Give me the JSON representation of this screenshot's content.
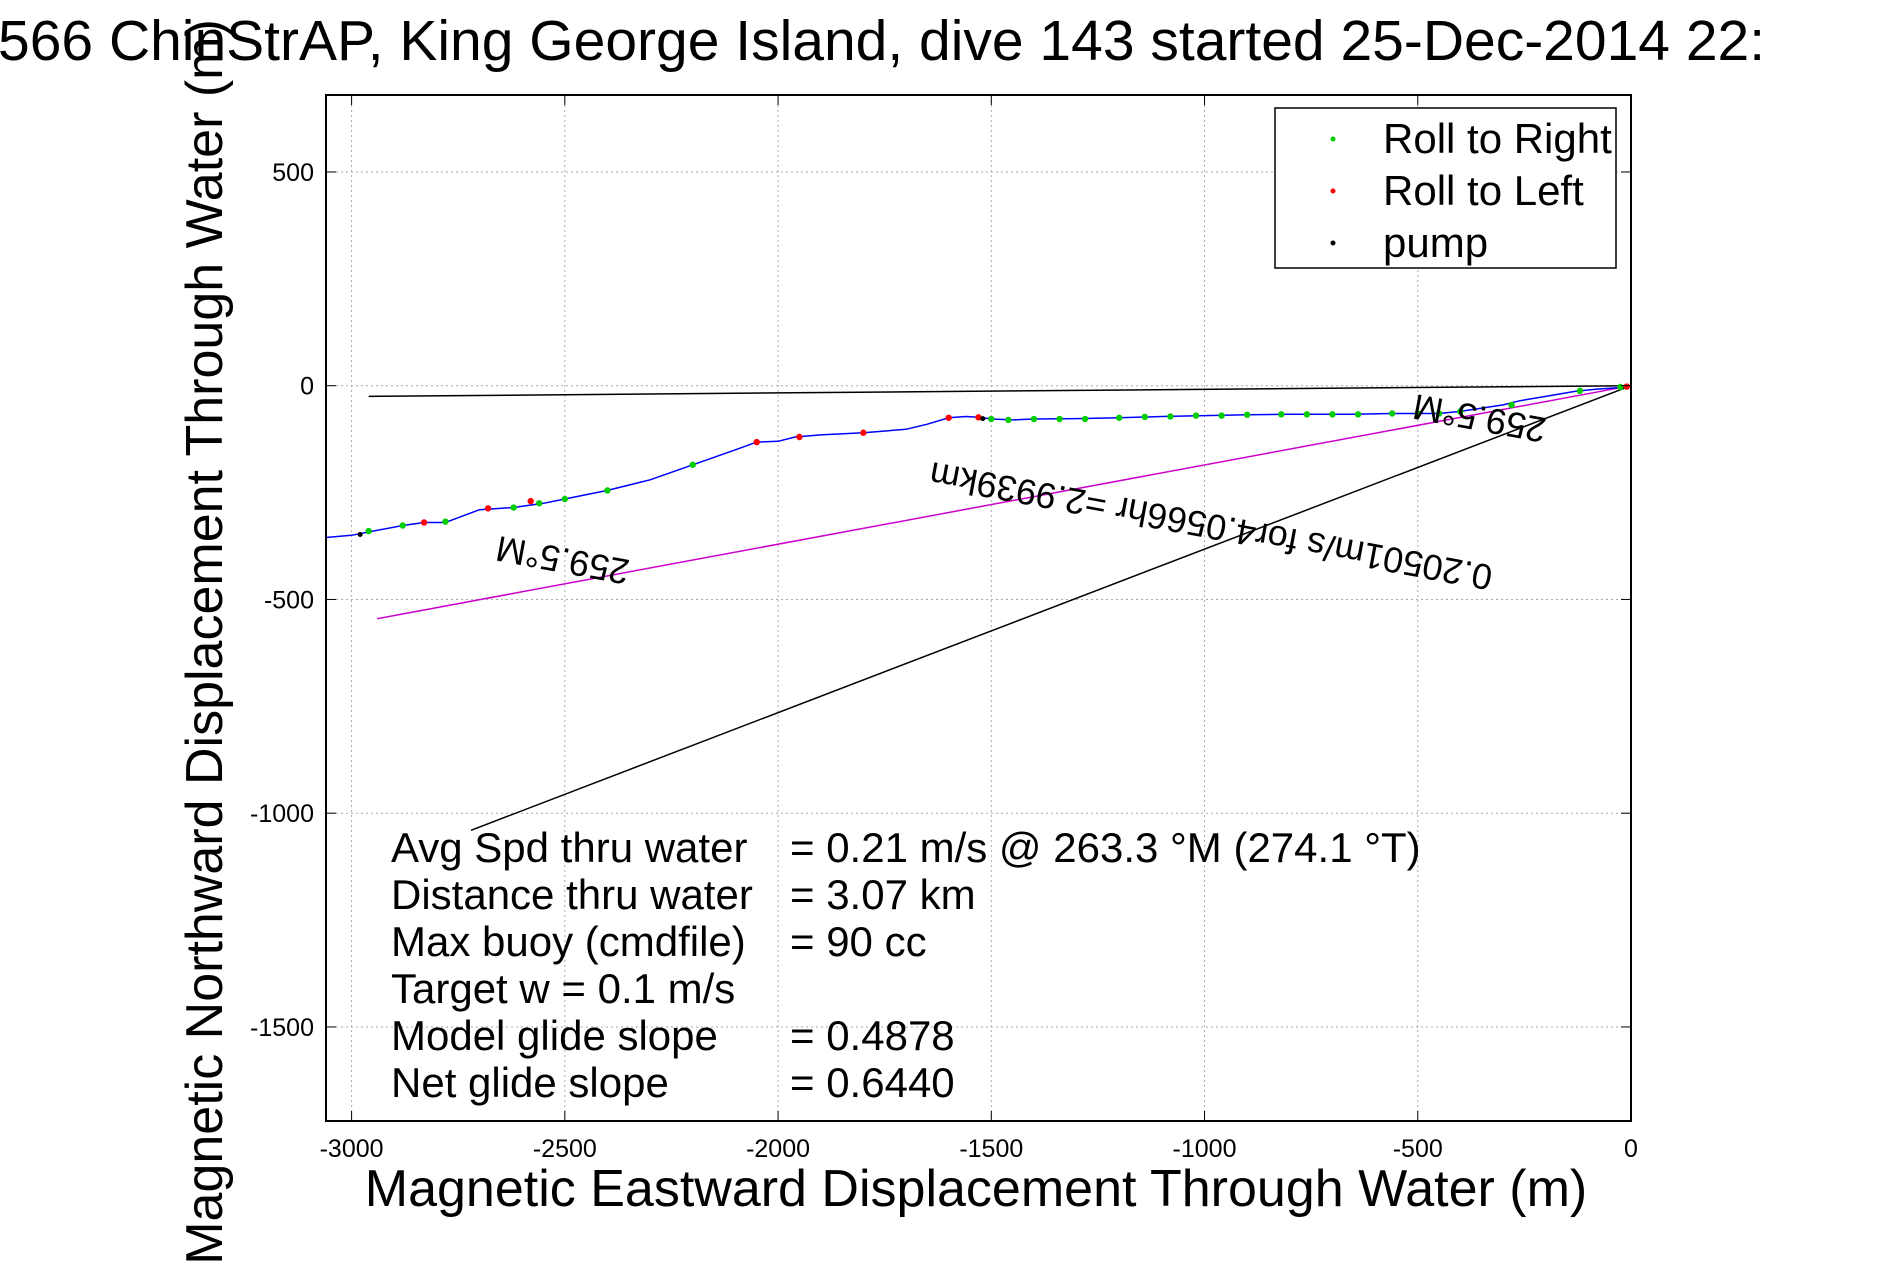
{
  "chart_data": {
    "type": "line",
    "title": "566 ChinStrAP, King George Island, dive 143 started 25-Dec-2014 22:",
    "xlabel": "Magnetic Eastward Displacement Through Water (m)",
    "ylabel": "Magnetic Northward Displacement Through Water (m)",
    "xlim": [
      -3060,
      0
    ],
    "ylim": [
      -1720,
      680
    ],
    "x_ticks": [
      -3000,
      -2500,
      -2000,
      -1500,
      -1000,
      -500,
      0
    ],
    "y_ticks": [
      500,
      0,
      -500,
      -1000,
      -1500
    ],
    "grid": true,
    "legend_position": "top-right",
    "legend": [
      {
        "label": "Roll to Right",
        "color": "#00cc00"
      },
      {
        "label": "Roll to Left",
        "color": "#ff0000"
      },
      {
        "label": "pump",
        "color": "#000000"
      }
    ],
    "series": [
      {
        "name": "track",
        "color": "#0000ff",
        "points": [
          [
            0,
            0
          ],
          [
            -30,
            -5
          ],
          [
            -80,
            -8
          ],
          [
            -130,
            -13
          ],
          [
            -200,
            -25
          ],
          [
            -260,
            -35
          ],
          [
            -300,
            -45
          ],
          [
            -400,
            -60
          ],
          [
            -450,
            -65
          ],
          [
            -500,
            -65
          ],
          [
            -560,
            -65
          ],
          [
            -650,
            -67
          ],
          [
            -800,
            -67
          ],
          [
            -900,
            -68
          ],
          [
            -1000,
            -70
          ],
          [
            -1100,
            -72
          ],
          [
            -1200,
            -75
          ],
          [
            -1300,
            -77
          ],
          [
            -1400,
            -78
          ],
          [
            -1450,
            -80
          ],
          [
            -1500,
            -78
          ],
          [
            -1530,
            -74
          ],
          [
            -1560,
            -72
          ],
          [
            -1600,
            -75
          ],
          [
            -1650,
            -90
          ],
          [
            -1700,
            -102
          ],
          [
            -1800,
            -110
          ],
          [
            -1900,
            -115
          ],
          [
            -1960,
            -120
          ],
          [
            -2000,
            -130
          ],
          [
            -2050,
            -132
          ],
          [
            -2100,
            -150
          ],
          [
            -2200,
            -185
          ],
          [
            -2300,
            -220
          ],
          [
            -2400,
            -245
          ],
          [
            -2500,
            -265
          ],
          [
            -2550,
            -275
          ],
          [
            -2620,
            -285
          ],
          [
            -2700,
            -290
          ],
          [
            -2780,
            -320
          ],
          [
            -2830,
            -320
          ],
          [
            -2880,
            -327
          ],
          [
            -2950,
            -340
          ],
          [
            -3000,
            -350
          ],
          [
            -3060,
            -355
          ]
        ]
      }
    ],
    "roll_right_points": [
      [
        -25,
        -3
      ],
      [
        -120,
        -12
      ],
      [
        -280,
        -45
      ],
      [
        -400,
        -60
      ],
      [
        -450,
        -65
      ],
      [
        -500,
        -65
      ],
      [
        -560,
        -65
      ],
      [
        -640,
        -67
      ],
      [
        -700,
        -67
      ],
      [
        -760,
        -67
      ],
      [
        -820,
        -67
      ],
      [
        -900,
        -68
      ],
      [
        -960,
        -70
      ],
      [
        -1020,
        -70
      ],
      [
        -1080,
        -72
      ],
      [
        -1140,
        -73
      ],
      [
        -1200,
        -75
      ],
      [
        -1280,
        -78
      ],
      [
        -1340,
        -78
      ],
      [
        -1400,
        -78
      ],
      [
        -1460,
        -80
      ],
      [
        -1500,
        -78
      ],
      [
        -2200,
        -185
      ],
      [
        -2400,
        -245
      ],
      [
        -2500,
        -265
      ],
      [
        -2560,
        -275
      ],
      [
        -2620,
        -285
      ],
      [
        -2780,
        -318
      ],
      [
        -2880,
        -327
      ],
      [
        -2960,
        -340
      ]
    ],
    "roll_left_points": [
      [
        -10,
        -2
      ],
      [
        -1530,
        -74
      ],
      [
        -1600,
        -75
      ],
      [
        -1800,
        -110
      ],
      [
        -1950,
        -120
      ],
      [
        -2050,
        -132
      ],
      [
        -2580,
        -270
      ],
      [
        -2680,
        -287
      ],
      [
        -2830,
        -320
      ]
    ],
    "pump_points": [
      [
        -1520,
        -77
      ],
      [
        -2980,
        -348
      ]
    ],
    "reference_lines": [
      {
        "name": "surface-current",
        "color": "#000000",
        "from": [
          0,
          0
        ],
        "to": [
          -2960,
          -25
        ]
      },
      {
        "name": "heading",
        "color": "#cc00cc",
        "from": [
          0,
          0
        ],
        "to": [
          -2940,
          -545
        ]
      },
      {
        "name": "glide",
        "color": "#000000",
        "from": [
          0,
          0
        ],
        "to": [
          -2720,
          -1040
        ]
      }
    ],
    "annotations": [
      {
        "text": "259.5°M",
        "x": -350,
        "y": -48,
        "rotation": 190.5
      },
      {
        "text": "0.20501m/s for4.0566hr =2.9939km",
        "x": -980,
        "y": -300,
        "rotation": 190.5
      },
      {
        "text": "259.5°M",
        "x": -2500,
        "y": -380,
        "rotation": 190.5
      }
    ],
    "stats": [
      {
        "label": "Avg Spd thru water",
        "value": "=  0.21 m/s @ 263.3 °M (274.1 °T)"
      },
      {
        "label": "Distance thru water",
        "value": "=  3.07 km"
      },
      {
        "label": "Max buoy (cmdfile)",
        "value": "= 90 cc"
      },
      {
        "label": "Target w    = 0.1 m/s",
        "value": ""
      },
      {
        "label": "Model glide slope",
        "value": "= 0.4878"
      },
      {
        "label": "Net glide slope",
        "value": "= 0.6440"
      }
    ]
  }
}
